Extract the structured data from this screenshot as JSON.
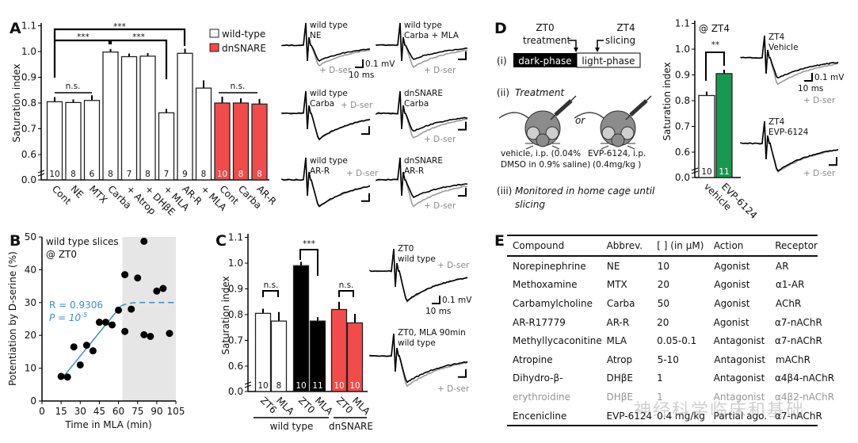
{
  "colors": {
    "wildtype": "#ffffff",
    "dnsnare": "#f24b4b",
    "zt0_black": "#000000",
    "evp": "#1a9850",
    "fit": "#3b8fc2",
    "dser": "#8a8a8a",
    "shade": "#e6e6e6"
  },
  "panels": {
    "A": "A",
    "B": "B",
    "C": "C",
    "D": "D",
    "E": "E"
  },
  "chart_data": [
    {
      "id": "A",
      "type": "bar",
      "ylabel": "Saturation index",
      "ylim": [
        0.0,
        1.1
      ],
      "yaxis_break": true,
      "yticks": [
        "0.0",
        "0.6",
        "0.7",
        "0.8",
        "0.9",
        "1.0",
        "1.1"
      ],
      "legend": [
        {
          "label": "wild-type",
          "color": "#ffffff"
        },
        {
          "label": "dnSNARE",
          "color": "#f24b4b"
        }
      ],
      "legend_placement": "top-right",
      "categories": [
        "Cont",
        "NE",
        "MTX",
        "Carba",
        "+ Atrop",
        "+ DHβE",
        "+ MLA",
        "AR-R",
        "+ MLA",
        "Cont",
        "Carba",
        "AR-R"
      ],
      "groups": [
        "wild-type",
        "wild-type",
        "wild-type",
        "wild-type",
        "wild-type",
        "wild-type",
        "wild-type",
        "wild-type",
        "wild-type",
        "dnSNARE",
        "dnSNARE",
        "dnSNARE"
      ],
      "values": [
        0.805,
        0.802,
        0.81,
        0.998,
        0.98,
        0.982,
        0.762,
        0.993,
        0.858,
        0.8,
        0.8,
        0.796
      ],
      "errors": [
        0.018,
        0.012,
        0.02,
        0.012,
        0.012,
        0.012,
        0.015,
        0.018,
        0.03,
        0.025,
        0.018,
        0.02
      ],
      "n": [
        "10",
        "8",
        "6",
        "8",
        "7",
        "8",
        "7",
        "9",
        "8",
        "10",
        "8",
        "8"
      ],
      "annotations": [
        "***",
        "***",
        "***",
        "n.s.",
        "n.s."
      ]
    },
    {
      "id": "B",
      "type": "scatter",
      "xlabel": "Time in MLA (min)",
      "ylabel": "Potentiation by D-serine (%)",
      "xlim": [
        0,
        105
      ],
      "ylim": [
        0,
        50
      ],
      "xticks": [
        "0",
        "15",
        "30",
        "45",
        "60",
        "75",
        "90",
        "105"
      ],
      "yticks": [
        "0",
        "10",
        "20",
        "30",
        "40",
        "50"
      ],
      "title": "wild type slices",
      "subtitle": "@ ZT0",
      "shaded_x": [
        63,
        105
      ],
      "points": [
        [
          15,
          7.5
        ],
        [
          20,
          7.3
        ],
        [
          25,
          16.5
        ],
        [
          30,
          11
        ],
        [
          35,
          17
        ],
        [
          40,
          15.3
        ],
        [
          45,
          24
        ],
        [
          50,
          24
        ],
        [
          55,
          23.2
        ],
        [
          60,
          27.7
        ],
        [
          65,
          38.5
        ],
        [
          65,
          21.2
        ],
        [
          70,
          28
        ],
        [
          75,
          37.5
        ],
        [
          80,
          48.7
        ],
        [
          80,
          20.2
        ],
        [
          85,
          19.7
        ],
        [
          90,
          33.5
        ],
        [
          95,
          34.3
        ],
        [
          100,
          20.6
        ]
      ],
      "fit": {
        "solid": [
          [
            17,
            7.5
          ],
          [
            62,
            29
          ]
        ],
        "plateau": 30,
        "R": "R = 0.9306",
        "P": "P = 10",
        "P_exp": "-5"
      }
    },
    {
      "id": "C",
      "type": "bar",
      "ylabel": "Saturation index",
      "ylim": [
        0.0,
        1.1
      ],
      "yaxis_break": true,
      "yticks": [
        "0.0",
        "0.6",
        "0.7",
        "0.8",
        "0.9",
        "1.0",
        "1.1"
      ],
      "categories": [
        "ZT6",
        "MLA",
        "ZT0",
        "MLA",
        "ZT0",
        "MLA"
      ],
      "colors": [
        "#ffffff",
        "#ffffff",
        "#000000",
        "#000000",
        "#f24b4b",
        "#f24b4b"
      ],
      "values": [
        0.805,
        0.775,
        0.99,
        0.775,
        0.82,
        0.768
      ],
      "errors": [
        0.018,
        0.035,
        0.015,
        0.015,
        0.03,
        0.035
      ],
      "n": [
        "10",
        "8",
        "10",
        "11",
        "10",
        "10"
      ],
      "group_labels": [
        "wild type",
        "dnSNARE"
      ],
      "annotations": [
        "n.s.",
        "***",
        "n.s."
      ]
    },
    {
      "id": "D",
      "type": "bar",
      "ylabel": "Saturation index",
      "ylim": [
        0.0,
        1.1
      ],
      "yaxis_break": true,
      "yticks": [
        "0.0",
        "0.6",
        "0.7",
        "0.8",
        "0.9",
        "1.0",
        "1.1"
      ],
      "title": "@ ZT4",
      "categories": [
        "vehicle",
        "EVP-6124"
      ],
      "colors": [
        "#ffffff",
        "#1a9850"
      ],
      "values": [
        0.82,
        0.905
      ],
      "errors": [
        0.015,
        0.015
      ],
      "n": [
        "10",
        "11"
      ],
      "annotations": [
        "**"
      ]
    }
  ],
  "tracesA": [
    {
      "l1": "wild type",
      "l2": "NE",
      "dser": "+ D-ser",
      "scale_v": "0.1 mV",
      "scale_t": "10 ms"
    },
    {
      "l1": "wild type",
      "l2": "Carba + MLA",
      "dser": "+ D-ser"
    },
    {
      "l1": "wild type",
      "l2": "Carba",
      "dser": "+ D-ser"
    },
    {
      "l1": "dnSNARE",
      "l2": "Carba",
      "dser": "+ D-ser"
    },
    {
      "l1": "wild type",
      "l2": "AR-R",
      "dser": "+ D-ser"
    },
    {
      "l1": "dnSNARE",
      "l2": "AR-R",
      "dser": "+ D-ser"
    }
  ],
  "tracesC": [
    {
      "l1": "ZT0",
      "l2": "wild type",
      "dser": "+ D-ser",
      "scale_v": "0.1 mV",
      "scale_t": "10 ms"
    },
    {
      "l1": "ZT0, MLA 90min",
      "l2": "wild type",
      "dser": "+ D-ser"
    }
  ],
  "tracesD": [
    {
      "l1": "ZT4",
      "l2": "Vehicle",
      "dser": "+ D-ser",
      "scale_v": "0.1 mV",
      "scale_t": "10 ms"
    },
    {
      "l1": "ZT4",
      "l2": "EVP-6124",
      "dser": "+ D-ser"
    }
  ],
  "schematicD": {
    "zt0": "ZT0",
    "treatment": "treatment",
    "zt4": "ZT4",
    "slicing": "slicing",
    "i": "(i)",
    "dark": "dark-phase",
    "light": "light-phase",
    "ii": "(ii)",
    "ii_text": "Treatment",
    "or": "or",
    "veh1": "vehicle, i.p. (0.04%",
    "veh2": "DMSO in 0.9% saline)",
    "evp1": "EVP-6124, i.p.",
    "evp2": "(0.4mg/kg )",
    "iii": "(iii)",
    "iii_text1": "Monitored in home cage until",
    "iii_text2": "slicing"
  },
  "tableE": {
    "headers": [
      "Compound",
      "Abbrev.",
      "[  ] (in μM)",
      "Action",
      "Receptor"
    ],
    "rows": [
      [
        "Norepinephrine",
        "NE",
        "10",
        "Agonist",
        "AR"
      ],
      [
        "Methoxamine",
        "MTX",
        "20",
        "Agonist",
        "α1-AR"
      ],
      [
        "Carbamylcholine",
        "Carba",
        "50",
        "Agonist",
        "AChR"
      ],
      [
        "AR-R17779",
        "AR-R",
        "20",
        "Agonist",
        "α7-nAChR"
      ],
      [
        "Methyllycaconitine",
        "MLA",
        "0.05-0.1",
        "Antagonist",
        "α7-nAChR"
      ],
      [
        "Atropine",
        "Atrop",
        "5-10",
        "Antagonist",
        "mAChR"
      ],
      [
        "Dihydro-β-",
        "DHβE",
        "1",
        "Antagonist",
        "α4β4-nAChR"
      ],
      [
        "erythroidine",
        "DHβE",
        "1",
        "Antagonist",
        "α4β2-nAChR"
      ],
      [
        "Encenicline",
        "EVP-6124",
        "0.4 mg/kg",
        "Partial ago.",
        "α7-nAChR"
      ]
    ]
  },
  "watermark": "神经科学临床和基础"
}
